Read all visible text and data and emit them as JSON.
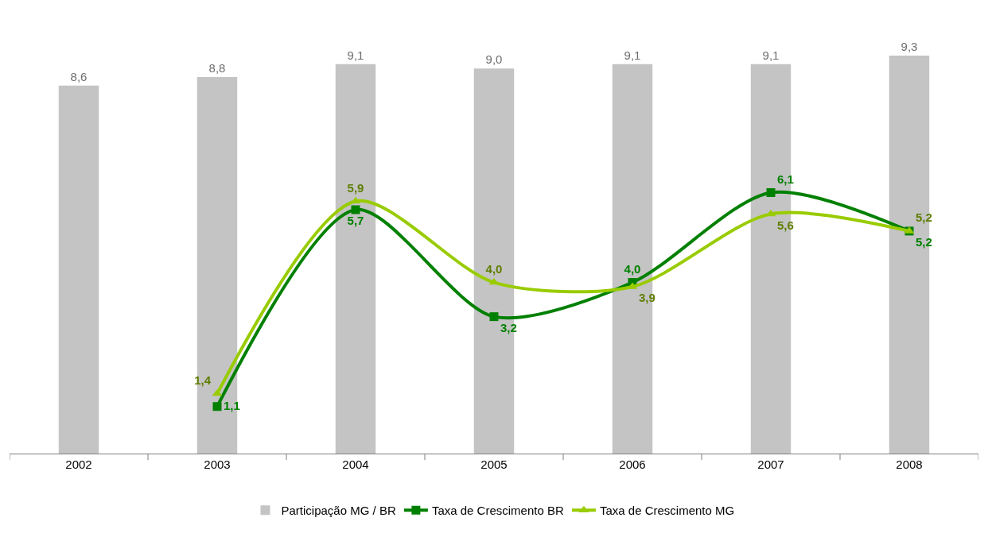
{
  "chart_data": {
    "type": "bar",
    "categories": [
      "2002",
      "2003",
      "2004",
      "2005",
      "2006",
      "2007",
      "2008"
    ],
    "series": [
      {
        "name": "Participação MG / BR",
        "color": "#c4c4c4",
        "values": [
          8.6,
          8.8,
          9.1,
          9.0,
          9.1,
          9.1,
          9.3
        ],
        "value_labels": [
          "8,6",
          "8,8",
          "9,1",
          "9,0",
          "9,1",
          "9,1",
          "9,3"
        ]
      },
      {
        "name": "Taxa de Crescimento BR",
        "type": "line",
        "color": "#008000",
        "marker": "square",
        "values": [
          null,
          1.1,
          5.7,
          3.2,
          4.0,
          6.1,
          5.2
        ],
        "value_labels": [
          null,
          "1,1",
          "5,7",
          "3,2",
          "4,0",
          "6,1",
          "5,2"
        ]
      },
      {
        "name": "Taxa de Crescimento MG",
        "type": "line",
        "color": "#99cc00",
        "marker": "triangle",
        "values": [
          null,
          1.4,
          5.9,
          4.0,
          3.9,
          5.6,
          5.2
        ],
        "value_labels": [
          null,
          "1,4",
          "5,9",
          "4,0",
          "3,9",
          "5,6",
          "5,2"
        ]
      }
    ],
    "legend": "bottom",
    "tick_labels": "x"
  }
}
